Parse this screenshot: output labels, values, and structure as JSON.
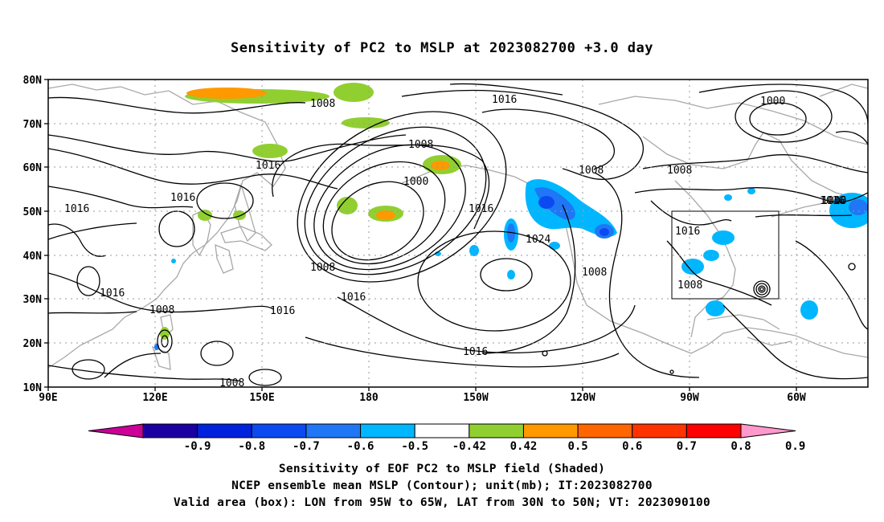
{
  "title": "Sensitivity of PC2 to MSLP at 2023082700 +3.0 day",
  "lat_labels": [
    "80N",
    "70N",
    "60N",
    "50N",
    "40N",
    "30N",
    "20N",
    "10N"
  ],
  "lon_labels": [
    "90E",
    "120E",
    "150E",
    "180",
    "150W",
    "120W",
    "90W",
    "60W"
  ],
  "contour_labels": [
    "1008",
    "1016",
    "1000",
    "1008",
    "1016",
    "1000",
    "1008",
    "1016",
    "1016",
    "1016",
    "1016",
    "1008",
    "1016",
    "1000",
    "1008",
    "1024",
    "1016",
    "1016",
    "1008",
    "1016",
    "1016",
    "1008",
    "1008",
    "1016",
    "1008",
    "1008"
  ],
  "colorbar": {
    "colors": [
      "#cc0099",
      "#1a00a0",
      "#0022dd",
      "#0b4af0",
      "#1f77f5",
      "#00b7ff",
      "#ffffff",
      "#91cf31",
      "#ff9900",
      "#ff6600",
      "#ff3300",
      "#ff0000",
      "#ff99cc"
    ],
    "labels": [
      "-0.9",
      "-0.8",
      "-0.7",
      "-0.6",
      "-0.5",
      "-0.42",
      "0.42",
      "0.5",
      "0.6",
      "0.7",
      "0.8",
      "0.9"
    ]
  },
  "valid_box": {
    "lon_min": -95,
    "lon_max": -65,
    "lat_min": 30,
    "lat_max": 50
  },
  "footer": {
    "line1": "Sensitivity of EOF PC2 to MSLP field (Shaded)",
    "line2": "NCEP ensemble mean MSLP (Contour); unit(mb); IT:2023082700",
    "line3": "Valid area (box): LON from 95W to 65W, LAT from 30N to 50N; VT: 2023090100"
  }
}
